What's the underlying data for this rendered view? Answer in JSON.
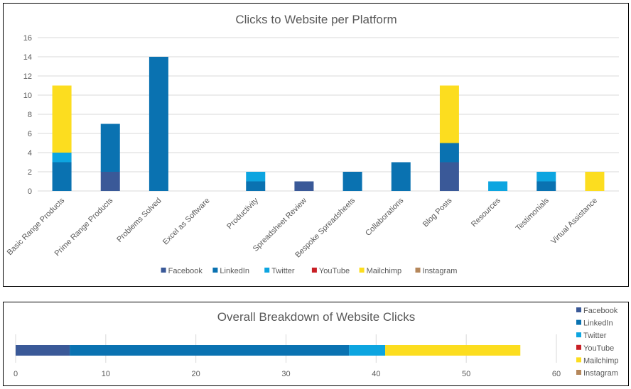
{
  "colors": {
    "Facebook": "#3a5998",
    "LinkedIn": "#0a72b1",
    "Twitter": "#0da5e0",
    "YouTube": "#c81f25",
    "Mailchimp": "#fcdd1f",
    "Instagram": "#b5875b"
  },
  "chart_data": [
    {
      "type": "bar",
      "stacked": true,
      "title": "Clicks to Website per Platform",
      "categories": [
        "Basic Range Products",
        "Prime Range Products",
        "Problems Solved",
        "Excel as Software",
        "Productivity",
        "Spreadsheet Review",
        "Bespoke Spreadsheets",
        "Collaborations",
        "Blog Posts",
        "Resources",
        "Testimonials",
        "Virtual Assistance"
      ],
      "series": [
        {
          "name": "Facebook",
          "values": [
            0,
            2,
            0,
            0,
            0,
            1,
            0,
            0,
            3,
            0,
            0,
            0
          ]
        },
        {
          "name": "LinkedIn",
          "values": [
            3,
            5,
            14,
            0,
            1,
            0,
            2,
            3,
            2,
            0,
            1,
            0
          ]
        },
        {
          "name": "Twitter",
          "values": [
            1,
            0,
            0,
            0,
            1,
            0,
            0,
            0,
            0,
            1,
            1,
            0
          ]
        },
        {
          "name": "YouTube",
          "values": [
            0,
            0,
            0,
            0,
            0,
            0,
            0,
            0,
            0,
            0,
            0,
            0
          ]
        },
        {
          "name": "Mailchimp",
          "values": [
            7,
            0,
            0,
            0,
            0,
            0,
            0,
            0,
            6,
            0,
            0,
            2
          ]
        },
        {
          "name": "Instagram",
          "values": [
            0,
            0,
            0,
            0,
            0,
            0,
            0,
            0,
            0,
            0,
            0,
            0
          ]
        }
      ],
      "ylim": [
        0,
        16
      ],
      "yticks": [
        "0",
        "2",
        "4",
        "6",
        "8",
        "10",
        "12",
        "14",
        "16"
      ],
      "grid": true,
      "legend": "bottom"
    },
    {
      "type": "bar",
      "orientation": "horizontal",
      "stacked": true,
      "title": "Overall Breakdown of Website Clicks",
      "series": [
        {
          "name": "Facebook",
          "value": 6
        },
        {
          "name": "LinkedIn",
          "value": 31
        },
        {
          "name": "Twitter",
          "value": 4
        },
        {
          "name": "YouTube",
          "value": 0
        },
        {
          "name": "Mailchimp",
          "value": 15
        },
        {
          "name": "Instagram",
          "value": 0
        }
      ],
      "xlim": [
        0,
        60
      ],
      "xticks": [
        "0",
        "10",
        "20",
        "30",
        "40",
        "50",
        "60"
      ],
      "grid": true,
      "legend": "right"
    }
  ]
}
